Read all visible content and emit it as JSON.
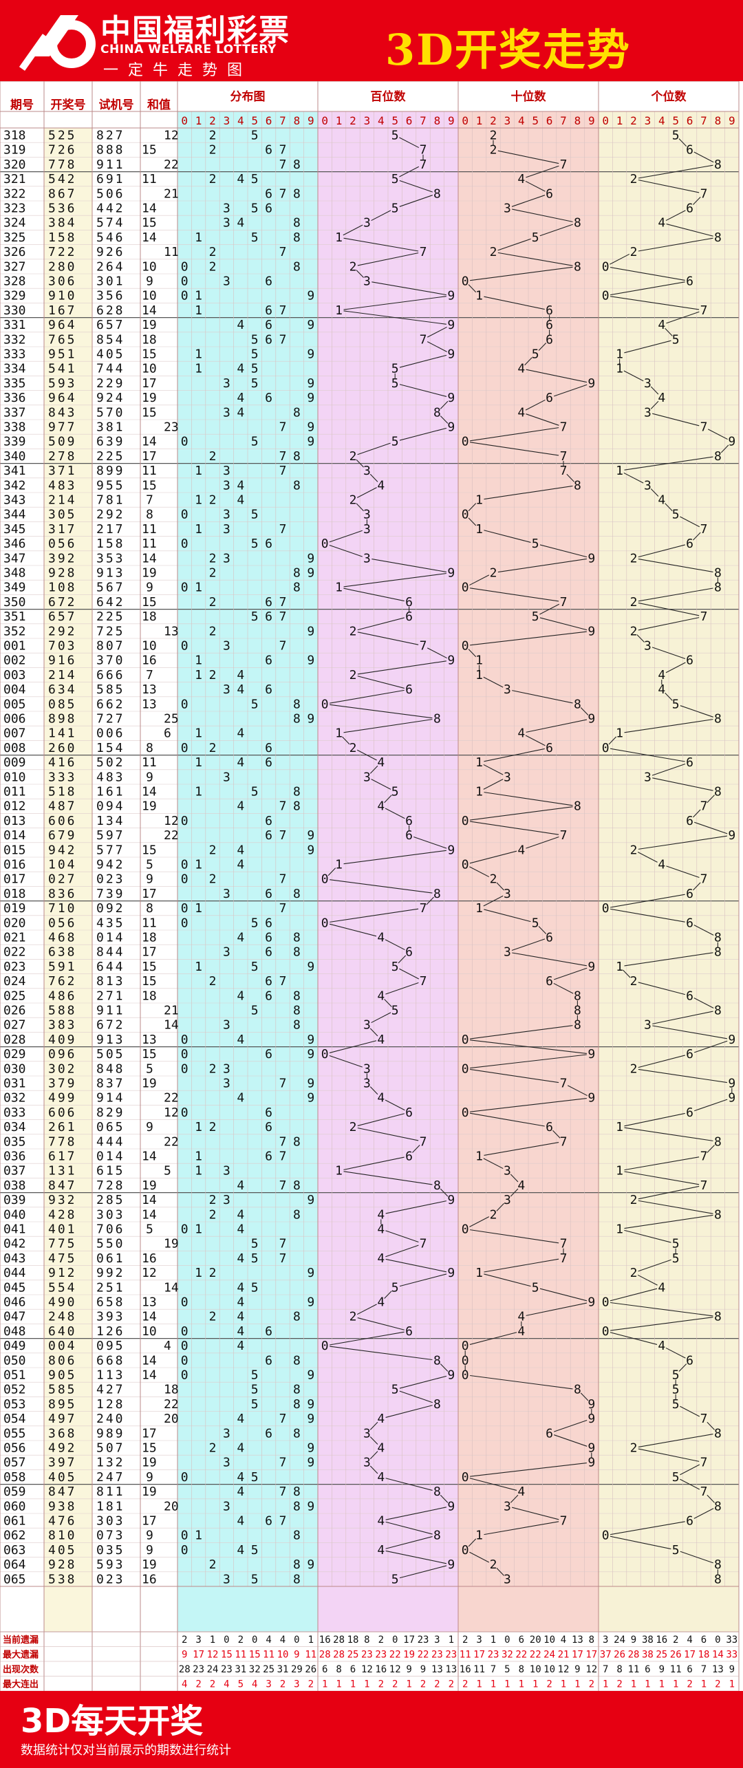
{
  "header": {
    "logo_cn": "中国福利彩票",
    "logo_en": "CHINA WELFARE LOTTERY",
    "logo_sub": "一定牛走势图",
    "title": "3D开奖走势"
  },
  "columns": {
    "issue": "期号",
    "draw": "开奖号",
    "test": "试机号",
    "sum": "和值",
    "distribution": "分布图",
    "hundreds": "百位数",
    "tens": "十位数",
    "units": "个位数",
    "digits": [
      "0",
      "1",
      "2",
      "3",
      "4",
      "5",
      "6",
      "7",
      "8",
      "9"
    ]
  },
  "colors": {
    "red": "#e60012",
    "red_text": "#e60012",
    "blue_text": "#1f3fd0",
    "cyan": "#c4f6f6",
    "pink": "#f3d4f5",
    "salmon": "#f8d6cf",
    "cream": "#f7f2d6",
    "yellow_col": "#faf6dc",
    "grid": "#c9a0a0"
  },
  "chart_data": {
    "type": "table",
    "rows": [
      {
        "issue": "318",
        "draw": "525",
        "test": "827",
        "sum": "12"
      },
      {
        "issue": "319",
        "draw": "726",
        "test": "888",
        "sum": "15"
      },
      {
        "issue": "320",
        "draw": "778",
        "test": "911",
        "sum": "22"
      },
      {
        "issue": "321",
        "draw": "542",
        "test": "691",
        "sum": "11"
      },
      {
        "issue": "322",
        "draw": "867",
        "test": "506",
        "sum": "21"
      },
      {
        "issue": "323",
        "draw": "536",
        "test": "442",
        "sum": "14"
      },
      {
        "issue": "324",
        "draw": "384",
        "test": "574",
        "sum": "15"
      },
      {
        "issue": "325",
        "draw": "158",
        "test": "546",
        "sum": "14"
      },
      {
        "issue": "326",
        "draw": "722",
        "test": "926",
        "sum": "11"
      },
      {
        "issue": "327",
        "draw": "280",
        "test": "264",
        "sum": "10"
      },
      {
        "issue": "328",
        "draw": "306",
        "test": "301",
        "sum": "9"
      },
      {
        "issue": "329",
        "draw": "910",
        "test": "356",
        "sum": "10"
      },
      {
        "issue": "330",
        "draw": "167",
        "test": "628",
        "sum": "14"
      },
      {
        "issue": "331",
        "draw": "964",
        "test": "657",
        "sum": "19"
      },
      {
        "issue": "332",
        "draw": "765",
        "test": "854",
        "sum": "18"
      },
      {
        "issue": "333",
        "draw": "951",
        "test": "405",
        "sum": "15"
      },
      {
        "issue": "334",
        "draw": "541",
        "test": "744",
        "sum": "10"
      },
      {
        "issue": "335",
        "draw": "593",
        "test": "229",
        "sum": "17"
      },
      {
        "issue": "336",
        "draw": "964",
        "test": "924",
        "sum": "19"
      },
      {
        "issue": "337",
        "draw": "843",
        "test": "570",
        "sum": "15"
      },
      {
        "issue": "338",
        "draw": "977",
        "test": "381",
        "sum": "23"
      },
      {
        "issue": "339",
        "draw": "509",
        "test": "639",
        "sum": "14"
      },
      {
        "issue": "340",
        "draw": "278",
        "test": "225",
        "sum": "17"
      },
      {
        "issue": "341",
        "draw": "371",
        "test": "899",
        "sum": "11"
      },
      {
        "issue": "342",
        "draw": "483",
        "test": "955",
        "sum": "15"
      },
      {
        "issue": "343",
        "draw": "214",
        "test": "781",
        "sum": "7"
      },
      {
        "issue": "344",
        "draw": "305",
        "test": "292",
        "sum": "8"
      },
      {
        "issue": "345",
        "draw": "317",
        "test": "217",
        "sum": "11"
      },
      {
        "issue": "346",
        "draw": "056",
        "test": "158",
        "sum": "11"
      },
      {
        "issue": "347",
        "draw": "392",
        "test": "353",
        "sum": "14"
      },
      {
        "issue": "348",
        "draw": "928",
        "test": "913",
        "sum": "19"
      },
      {
        "issue": "349",
        "draw": "108",
        "test": "567",
        "sum": "9"
      },
      {
        "issue": "350",
        "draw": "672",
        "test": "642",
        "sum": "15"
      },
      {
        "issue": "351",
        "draw": "657",
        "test": "225",
        "sum": "18"
      },
      {
        "issue": "352",
        "draw": "292",
        "test": "725",
        "sum": "13"
      },
      {
        "issue": "001",
        "draw": "703",
        "test": "807",
        "sum": "10"
      },
      {
        "issue": "002",
        "draw": "916",
        "test": "370",
        "sum": "16"
      },
      {
        "issue": "003",
        "draw": "214",
        "test": "666",
        "sum": "7"
      },
      {
        "issue": "004",
        "draw": "634",
        "test": "585",
        "sum": "13"
      },
      {
        "issue": "005",
        "draw": "085",
        "test": "662",
        "sum": "13"
      },
      {
        "issue": "006",
        "draw": "898",
        "test": "727",
        "sum": "25"
      },
      {
        "issue": "007",
        "draw": "141",
        "test": "006",
        "sum": "6"
      },
      {
        "issue": "008",
        "draw": "260",
        "test": "154",
        "sum": "8"
      },
      {
        "issue": "009",
        "draw": "416",
        "test": "502",
        "sum": "11"
      },
      {
        "issue": "010",
        "draw": "333",
        "test": "483",
        "sum": "9"
      },
      {
        "issue": "011",
        "draw": "518",
        "test": "161",
        "sum": "14"
      },
      {
        "issue": "012",
        "draw": "487",
        "test": "094",
        "sum": "19"
      },
      {
        "issue": "013",
        "draw": "606",
        "test": "134",
        "sum": "12"
      },
      {
        "issue": "014",
        "draw": "679",
        "test": "597",
        "sum": "22"
      },
      {
        "issue": "015",
        "draw": "942",
        "test": "577",
        "sum": "15"
      },
      {
        "issue": "016",
        "draw": "104",
        "test": "942",
        "sum": "5"
      },
      {
        "issue": "017",
        "draw": "027",
        "test": "023",
        "sum": "9"
      },
      {
        "issue": "018",
        "draw": "836",
        "test": "739",
        "sum": "17"
      },
      {
        "issue": "019",
        "draw": "710",
        "test": "092",
        "sum": "8"
      },
      {
        "issue": "020",
        "draw": "056",
        "test": "435",
        "sum": "11"
      },
      {
        "issue": "021",
        "draw": "468",
        "test": "014",
        "sum": "18"
      },
      {
        "issue": "022",
        "draw": "638",
        "test": "844",
        "sum": "17"
      },
      {
        "issue": "023",
        "draw": "591",
        "test": "644",
        "sum": "15"
      },
      {
        "issue": "024",
        "draw": "762",
        "test": "813",
        "sum": "15"
      },
      {
        "issue": "025",
        "draw": "486",
        "test": "271",
        "sum": "18"
      },
      {
        "issue": "026",
        "draw": "588",
        "test": "911",
        "sum": "21"
      },
      {
        "issue": "027",
        "draw": "383",
        "test": "672",
        "sum": "14"
      },
      {
        "issue": "028",
        "draw": "409",
        "test": "913",
        "sum": "13"
      },
      {
        "issue": "029",
        "draw": "096",
        "test": "505",
        "sum": "15"
      },
      {
        "issue": "030",
        "draw": "302",
        "test": "848",
        "sum": "5"
      },
      {
        "issue": "031",
        "draw": "379",
        "test": "837",
        "sum": "19"
      },
      {
        "issue": "032",
        "draw": "499",
        "test": "914",
        "sum": "22"
      },
      {
        "issue": "033",
        "draw": "606",
        "test": "829",
        "sum": "12"
      },
      {
        "issue": "034",
        "draw": "261",
        "test": "065",
        "sum": "9"
      },
      {
        "issue": "035",
        "draw": "778",
        "test": "444",
        "sum": "22"
      },
      {
        "issue": "036",
        "draw": "617",
        "test": "014",
        "sum": "14"
      },
      {
        "issue": "037",
        "draw": "131",
        "test": "615",
        "sum": "5"
      },
      {
        "issue": "038",
        "draw": "847",
        "test": "728",
        "sum": "19"
      },
      {
        "issue": "039",
        "draw": "932",
        "test": "285",
        "sum": "14"
      },
      {
        "issue": "040",
        "draw": "428",
        "test": "303",
        "sum": "14"
      },
      {
        "issue": "041",
        "draw": "401",
        "test": "706",
        "sum": "5"
      },
      {
        "issue": "042",
        "draw": "775",
        "test": "550",
        "sum": "19"
      },
      {
        "issue": "043",
        "draw": "475",
        "test": "061",
        "sum": "16"
      },
      {
        "issue": "044",
        "draw": "912",
        "test": "992",
        "sum": "12"
      },
      {
        "issue": "045",
        "draw": "554",
        "test": "251",
        "sum": "14"
      },
      {
        "issue": "046",
        "draw": "490",
        "test": "658",
        "sum": "13"
      },
      {
        "issue": "047",
        "draw": "248",
        "test": "393",
        "sum": "14"
      },
      {
        "issue": "048",
        "draw": "640",
        "test": "126",
        "sum": "10"
      },
      {
        "issue": "049",
        "draw": "004",
        "test": "095",
        "sum": "4"
      },
      {
        "issue": "050",
        "draw": "806",
        "test": "668",
        "sum": "14"
      },
      {
        "issue": "051",
        "draw": "905",
        "test": "113",
        "sum": "14"
      },
      {
        "issue": "052",
        "draw": "585",
        "test": "427",
        "sum": "18"
      },
      {
        "issue": "053",
        "draw": "895",
        "test": "128",
        "sum": "22"
      },
      {
        "issue": "054",
        "draw": "497",
        "test": "240",
        "sum": "20"
      },
      {
        "issue": "055",
        "draw": "368",
        "test": "989",
        "sum": "17"
      },
      {
        "issue": "056",
        "draw": "492",
        "test": "507",
        "sum": "15"
      },
      {
        "issue": "057",
        "draw": "397",
        "test": "132",
        "sum": "19"
      },
      {
        "issue": "058",
        "draw": "405",
        "test": "247",
        "sum": "9"
      },
      {
        "issue": "059",
        "draw": "847",
        "test": "811",
        "sum": "19"
      },
      {
        "issue": "060",
        "draw": "938",
        "test": "181",
        "sum": "20"
      },
      {
        "issue": "061",
        "draw": "476",
        "test": "303",
        "sum": "17"
      },
      {
        "issue": "062",
        "draw": "810",
        "test": "073",
        "sum": "9"
      },
      {
        "issue": "063",
        "draw": "405",
        "test": "035",
        "sum": "9"
      },
      {
        "issue": "064",
        "draw": "928",
        "test": "593",
        "sum": "19"
      },
      {
        "issue": "065",
        "draw": "538",
        "test": "023",
        "sum": "16"
      }
    ],
    "stats": [
      {
        "label": "当前遗漏",
        "dist": [
          "2",
          "3",
          "1",
          "0",
          "2",
          "0",
          "4",
          "4",
          "0",
          "1"
        ],
        "hundreds": [
          "16",
          "28",
          "18",
          "8",
          "2",
          "0",
          "17",
          "23",
          "3",
          "1"
        ],
        "tens": [
          "2",
          "3",
          "1",
          "0",
          "6",
          "20",
          "10",
          "4",
          "13",
          "8"
        ],
        "units": [
          "3",
          "24",
          "9",
          "38",
          "16",
          "2",
          "4",
          "6",
          "0",
          "33"
        ]
      },
      {
        "label": "最大遗漏",
        "dist": [
          "9",
          "17",
          "12",
          "15",
          "11",
          "15",
          "11",
          "10",
          "9",
          "11"
        ],
        "hundreds": [
          "28",
          "28",
          "25",
          "23",
          "23",
          "22",
          "19",
          "22",
          "23",
          "23"
        ],
        "tens": [
          "11",
          "17",
          "23",
          "32",
          "22",
          "22",
          "24",
          "21",
          "17",
          "17"
        ],
        "units": [
          "37",
          "26",
          "28",
          "38",
          "25",
          "26",
          "17",
          "18",
          "14",
          "33"
        ]
      },
      {
        "label": "出现次数",
        "dist": [
          "28",
          "23",
          "24",
          "23",
          "31",
          "32",
          "25",
          "31",
          "29",
          "26"
        ],
        "hundreds": [
          "6",
          "8",
          "6",
          "12",
          "16",
          "12",
          "9",
          "9",
          "13",
          "13"
        ],
        "tens": [
          "16",
          "11",
          "7",
          "5",
          "8",
          "10",
          "10",
          "12",
          "9",
          "12"
        ],
        "units": [
          "7",
          "8",
          "11",
          "6",
          "9",
          "11",
          "6",
          "7",
          "13",
          "9"
        ]
      },
      {
        "label": "最大连出",
        "dist": [
          "4",
          "2",
          "2",
          "4",
          "5",
          "4",
          "3",
          "2",
          "3",
          "2"
        ],
        "hundreds": [
          "1",
          "1",
          "1",
          "1",
          "2",
          "2",
          "1",
          "2",
          "2",
          "2"
        ],
        "tens": [
          "2",
          "1",
          "1",
          "1",
          "1",
          "1",
          "2",
          "1",
          "1",
          "2"
        ],
        "units": [
          "1",
          "2",
          "1",
          "1",
          "1",
          "1",
          "2",
          "1",
          "2",
          "1"
        ]
      }
    ]
  },
  "footer": {
    "title": "3D每天开奖",
    "note": "数据统计仅对当前展示的期数进行统计"
  }
}
